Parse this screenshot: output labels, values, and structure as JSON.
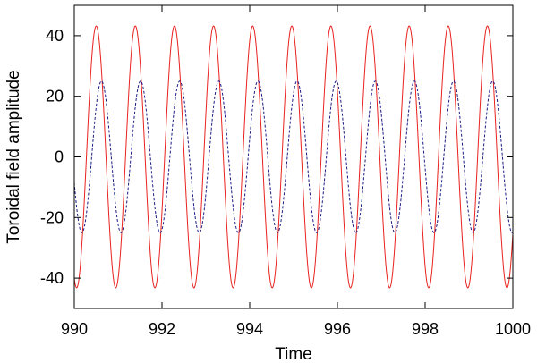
{
  "chart_data": {
    "type": "line",
    "xlabel": "Time",
    "ylabel": "Toroidal field amplitude",
    "xlim": [
      990,
      1000
    ],
    "ylim": [
      -50,
      50
    ],
    "xticks": [
      990,
      992,
      994,
      996,
      998,
      1000
    ],
    "yticks": [
      -40,
      -20,
      0,
      20,
      40
    ],
    "xtick_labels": [
      "990",
      "992",
      "994",
      "996",
      "998",
      "1000"
    ],
    "ytick_labels": [
      "-40",
      "-20",
      "0",
      "20",
      "40"
    ],
    "grid": false,
    "legend": "none",
    "series": [
      {
        "style": "solid",
        "color": "#e8221e",
        "function": "sine",
        "amplitude": 43.2,
        "period": 0.892,
        "first_peak_time": 990.5,
        "samples": {
          "x": [
            990.5,
            990.723,
            990.946,
            991.169,
            991.392,
            991.615,
            991.838,
            992.061,
            992.284
          ],
          "y": [
            43.2,
            0,
            -43.2,
            0,
            43.2,
            0,
            -43.2,
            0,
            43.2
          ]
        }
      },
      {
        "style": "dashed",
        "color": "#1c1c86",
        "function": "sine",
        "amplitude": 25.0,
        "period": 0.892,
        "first_peak_time": 990.62,
        "samples": {
          "x": [
            990.62,
            990.843,
            991.066,
            991.289,
            991.512,
            991.735,
            991.958,
            992.181,
            992.404
          ],
          "y": [
            25.0,
            0,
            -25.0,
            0,
            25.0,
            0,
            -25.0,
            0,
            25.0
          ]
        }
      }
    ]
  }
}
